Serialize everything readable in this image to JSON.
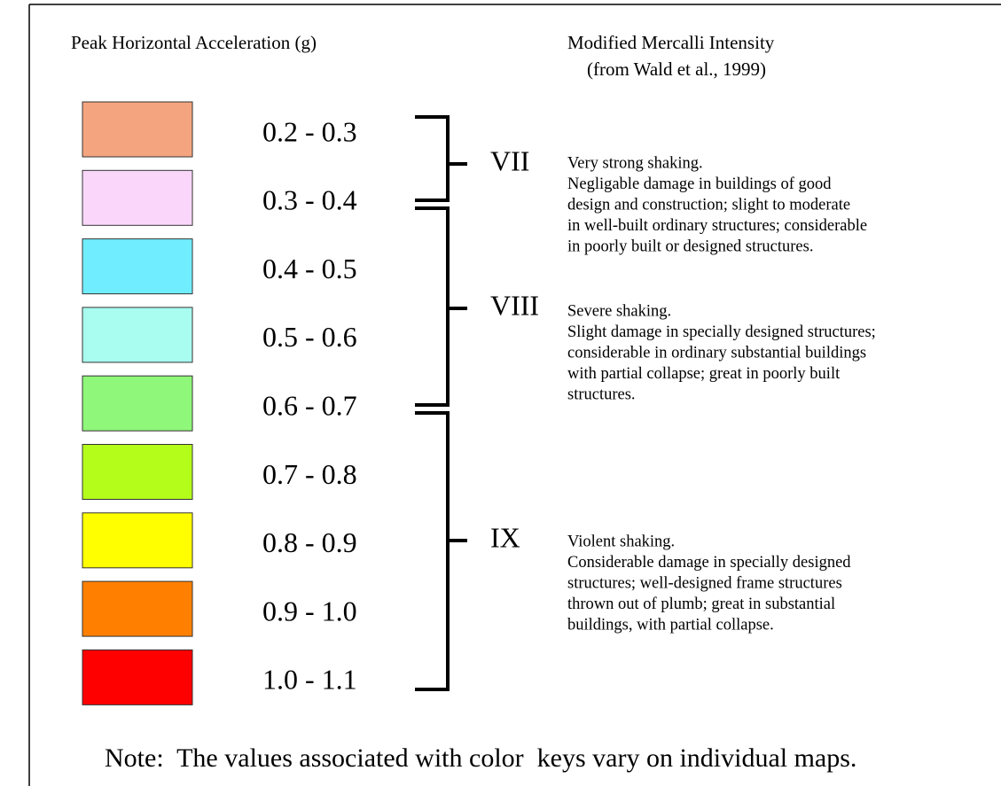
{
  "header": {
    "left_title": "Peak Horizontal Acceleration (g)",
    "right_title": "Modified Mercalli Intensity",
    "right_subtitle": "(from Wald et al., 1999)"
  },
  "legend": {
    "items": [
      {
        "label": "0.2 - 0.3",
        "color": "#f4a57f"
      },
      {
        "label": "0.3 - 0.4",
        "color": "#fad7fa"
      },
      {
        "label": "0.4 - 0.5",
        "color": "#70eeff"
      },
      {
        "label": "0.5 - 0.6",
        "color": "#a8fcf0"
      },
      {
        "label": "0.6 - 0.7",
        "color": "#8ff779"
      },
      {
        "label": "0.7 - 0.8",
        "color": "#b4fd1b"
      },
      {
        "label": "0.8 - 0.9",
        "color": "#ffff00"
      },
      {
        "label": "0.9 - 1.0",
        "color": "#ff8000"
      },
      {
        "label": "1.0 - 1.1",
        "color": "#ff0000"
      }
    ]
  },
  "intensity": {
    "levels": [
      {
        "numeral": "VII",
        "lines": [
          "Very strong shaking.",
          "Negligable damage in buildings of good",
          "design and construction; slight to moderate",
          "in well-built ordinary structures; considerable",
          "in poorly built or designed structures."
        ]
      },
      {
        "numeral": "VIII",
        "lines": [
          "Severe shaking.",
          "Slight damage in specially designed structures;",
          "considerable in ordinary substantial buildings",
          "with partial collapse; great in poorly built",
          "structures."
        ]
      },
      {
        "numeral": "IX",
        "lines": [
          "Violent shaking.",
          "Considerable damage in specially designed",
          "structures; well-designed frame structures",
          "thrown out of plumb; great in substantial",
          "buildings, with partial collapse."
        ]
      }
    ]
  },
  "note": "Note:  The values associated with color  keys vary on individual maps."
}
